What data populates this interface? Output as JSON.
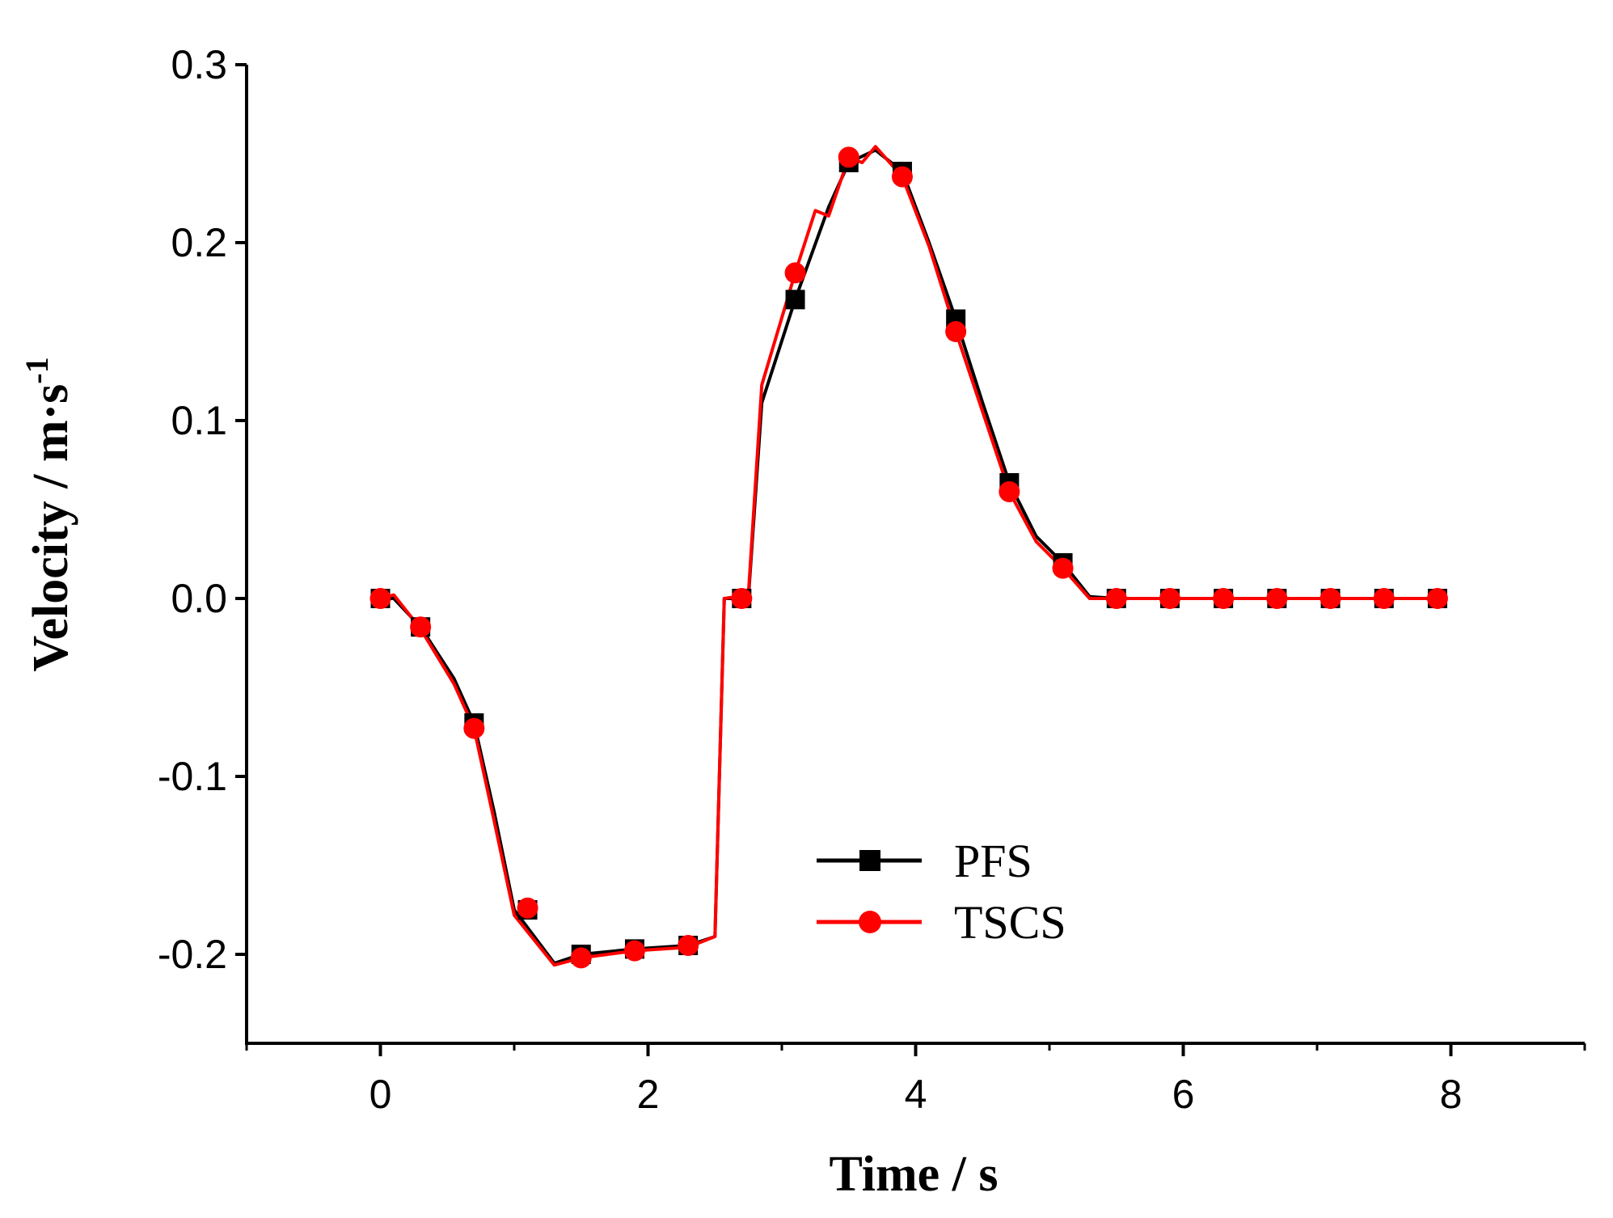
{
  "chart_data": {
    "type": "line",
    "title": "",
    "xlabel": "Time / s",
    "ylabel_main": "Velocity  / m·s",
    "ylabel_sup": "-1",
    "xlim": [
      -1,
      9
    ],
    "ylim": [
      -0.25,
      0.3
    ],
    "x_ticks": [
      0,
      2,
      4,
      6,
      8
    ],
    "x_tick_labels": [
      "0",
      "2",
      "4",
      "6",
      "8"
    ],
    "y_ticks": [
      0.3,
      0.2,
      0.1,
      0.0,
      -0.1,
      -0.2
    ],
    "y_tick_labels": [
      "0.3",
      "0.2",
      "0.1",
      "0.0",
      "-0.1",
      "-0.2"
    ],
    "grid": false,
    "legend_position": "bottom-center",
    "series": [
      {
        "name": "PFS",
        "color": "#000000",
        "marker": "square",
        "curve": [
          [
            0,
            0
          ],
          [
            0.1,
            0
          ],
          [
            0.3,
            -0.016
          ],
          [
            0.55,
            -0.045
          ],
          [
            0.7,
            -0.07
          ],
          [
            0.85,
            -0.12
          ],
          [
            1.0,
            -0.175
          ],
          [
            1.3,
            -0.205
          ],
          [
            1.5,
            -0.2
          ],
          [
            1.9,
            -0.197
          ],
          [
            2.3,
            -0.195
          ],
          [
            2.5,
            -0.19
          ],
          [
            2.57,
            0
          ],
          [
            2.75,
            0
          ],
          [
            2.85,
            0.11
          ],
          [
            3.1,
            0.168
          ],
          [
            3.35,
            0.22
          ],
          [
            3.5,
            0.245
          ],
          [
            3.7,
            0.252
          ],
          [
            3.9,
            0.24
          ],
          [
            4.1,
            0.2
          ],
          [
            4.3,
            0.157
          ],
          [
            4.5,
            0.11
          ],
          [
            4.7,
            0.065
          ],
          [
            4.9,
            0.035
          ],
          [
            5.1,
            0.02
          ],
          [
            5.3,
            0.001
          ],
          [
            5.5,
            0
          ],
          [
            7.9,
            0
          ]
        ],
        "markers": [
          [
            0,
            0
          ],
          [
            0.3,
            -0.016
          ],
          [
            0.7,
            -0.07
          ],
          [
            1.1,
            -0.175
          ],
          [
            1.5,
            -0.2
          ],
          [
            1.9,
            -0.197
          ],
          [
            2.3,
            -0.195
          ],
          [
            2.7,
            0
          ],
          [
            3.1,
            0.168
          ],
          [
            3.5,
            0.245
          ],
          [
            3.9,
            0.24
          ],
          [
            4.3,
            0.157
          ],
          [
            4.7,
            0.065
          ],
          [
            5.1,
            0.02
          ],
          [
            5.5,
            0
          ],
          [
            5.9,
            0
          ],
          [
            6.3,
            0
          ],
          [
            6.7,
            0
          ],
          [
            7.1,
            0
          ],
          [
            7.5,
            0
          ],
          [
            7.9,
            0
          ]
        ]
      },
      {
        "name": "TSCS",
        "color": "#ff0000",
        "marker": "circle",
        "curve": [
          [
            0,
            0
          ],
          [
            0.1,
            0.002
          ],
          [
            0.3,
            -0.017
          ],
          [
            0.55,
            -0.048
          ],
          [
            0.7,
            -0.073
          ],
          [
            0.85,
            -0.125
          ],
          [
            1.0,
            -0.178
          ],
          [
            1.3,
            -0.206
          ],
          [
            1.5,
            -0.202
          ],
          [
            1.9,
            -0.198
          ],
          [
            2.3,
            -0.196
          ],
          [
            2.5,
            -0.19
          ],
          [
            2.57,
            0
          ],
          [
            2.75,
            0.002
          ],
          [
            2.85,
            0.12
          ],
          [
            3.1,
            0.183
          ],
          [
            3.25,
            0.218
          ],
          [
            3.35,
            0.215
          ],
          [
            3.5,
            0.248
          ],
          [
            3.6,
            0.245
          ],
          [
            3.7,
            0.254
          ],
          [
            3.9,
            0.237
          ],
          [
            4.1,
            0.198
          ],
          [
            4.3,
            0.15
          ],
          [
            4.5,
            0.105
          ],
          [
            4.7,
            0.06
          ],
          [
            4.9,
            0.032
          ],
          [
            5.1,
            0.017
          ],
          [
            5.3,
            0
          ],
          [
            5.5,
            0
          ],
          [
            7.95,
            0
          ]
        ],
        "markers": [
          [
            0,
            0
          ],
          [
            0.3,
            -0.016
          ],
          [
            0.7,
            -0.073
          ],
          [
            1.1,
            -0.174
          ],
          [
            1.5,
            -0.202
          ],
          [
            1.9,
            -0.198
          ],
          [
            2.3,
            -0.195
          ],
          [
            2.7,
            0
          ],
          [
            3.1,
            0.183
          ],
          [
            3.5,
            0.248
          ],
          [
            3.9,
            0.237
          ],
          [
            4.3,
            0.15
          ],
          [
            4.7,
            0.06
          ],
          [
            5.1,
            0.017
          ],
          [
            5.5,
            0
          ],
          [
            5.9,
            0
          ],
          [
            6.3,
            0
          ],
          [
            6.7,
            0
          ],
          [
            7.1,
            0
          ],
          [
            7.5,
            0
          ],
          [
            7.9,
            0
          ]
        ]
      }
    ]
  }
}
